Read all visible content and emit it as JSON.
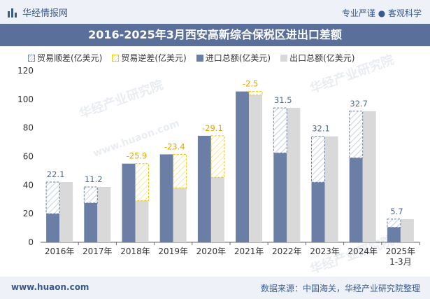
{
  "header": {
    "logo_text": "华经情报网",
    "tagline": "专业严谨 ● 客观科学"
  },
  "watermarks": [
    "华经产业研究院",
    "www.huaon.com"
  ],
  "footer": {
    "website": "www.huaon.com",
    "source": "数据来源：中国海关，华经产业研究院整理"
  },
  "colors": {
    "import": "#6b7fa6",
    "export": "#d9d9d9",
    "surplus": "#6b7fa6",
    "deficit": "#f2c200",
    "title_band": "#5b6f9b"
  },
  "chart_data": {
    "type": "bar",
    "title": "2016-2025年3月西安高新综合保税区进出口差额",
    "categories": [
      "2016年",
      "2017年",
      "2018年",
      "2019年",
      "2020年",
      "2021年",
      "2022年",
      "2023年",
      "2024年",
      "2025年"
    ],
    "category_sublabels": [
      "",
      "",
      "",
      "",
      "",
      "",
      "",
      "",
      "",
      "1-3月"
    ],
    "ylim": [
      0,
      120
    ],
    "yticks": [
      0,
      20,
      40,
      60,
      80,
      100,
      120
    ],
    "legend": [
      "贸易顺差(亿美元)",
      "贸易逆差(亿美元)",
      "进口总额(亿美元)",
      "出口总额(亿美元)"
    ],
    "series": [
      {
        "name": "进口总额(亿美元)",
        "values": [
          20.0,
          27.5,
          55.0,
          61.5,
          74.5,
          105.5,
          62.5,
          42.0,
          59.0,
          10.5
        ]
      },
      {
        "name": "出口总额(亿美元)",
        "values": [
          42.1,
          38.7,
          29.1,
          38.1,
          45.4,
          103.0,
          94.0,
          74.1,
          91.7,
          16.2
        ]
      }
    ],
    "balance": {
      "values": [
        22.1,
        11.2,
        -25.9,
        -23.4,
        -29.1,
        -2.5,
        31.5,
        32.1,
        32.7,
        5.7
      ],
      "labels": [
        "22.1",
        "11.2",
        "-25.9",
        "-23.4",
        "-29.1",
        "-2.5",
        "31.5",
        "32.1",
        "32.7",
        "5.7"
      ]
    }
  }
}
